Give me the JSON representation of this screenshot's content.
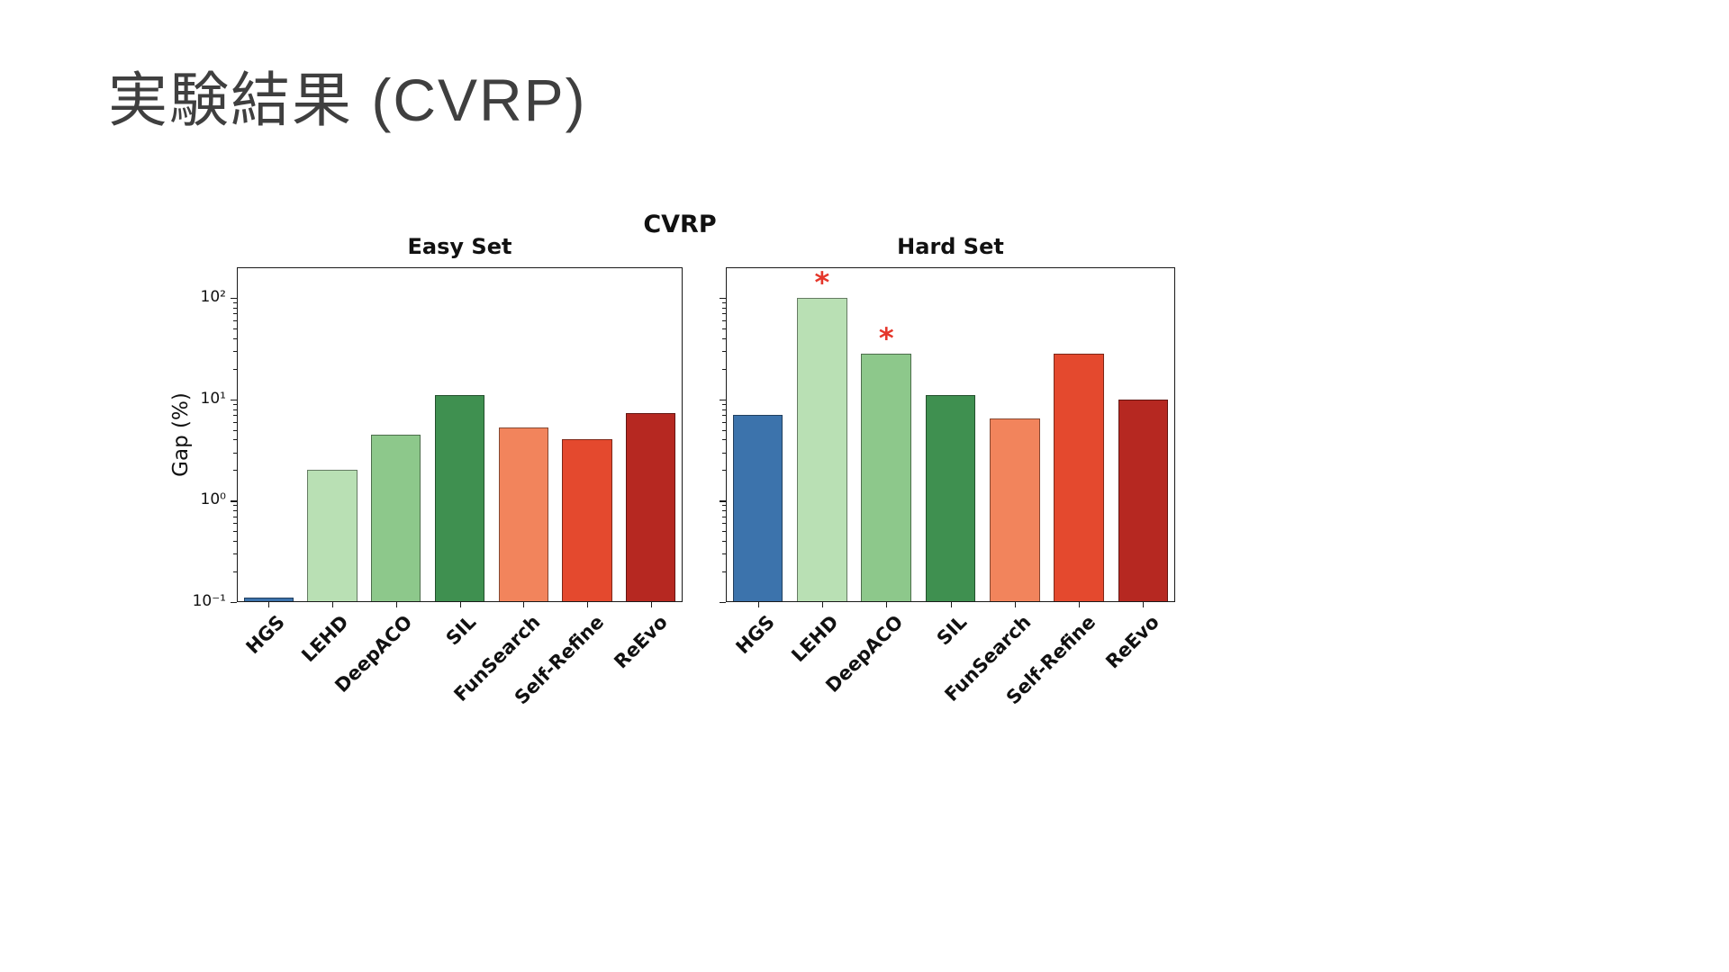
{
  "slide": {
    "title": "実験結果 (CVRP)"
  },
  "chart_data": {
    "type": "bar",
    "suptitle": "CVRP",
    "ylabel": "Gap (%)",
    "yscale": "log",
    "ylim": [
      0.1,
      200
    ],
    "yticks": [
      0.1,
      1,
      10,
      100
    ],
    "ytick_labels": [
      "10⁻¹",
      "10⁰",
      "10¹",
      "10²"
    ],
    "categories": [
      "HGS",
      "LEHD",
      "DeepACO",
      "SIL",
      "FunSearch",
      "Self-Refine",
      "ReEvo"
    ],
    "bar_colors": [
      "#3c73ac",
      "#b9e0b4",
      "#8dc88b",
      "#3f9050",
      "#f2845c",
      "#e4492e",
      "#b62821"
    ],
    "annotation_color": "#e5372b",
    "grid": false,
    "legend": "none",
    "subplots": [
      {
        "title": "Easy Set",
        "values": [
          0.11,
          2.0,
          4.5,
          11,
          5.3,
          4.0,
          7.3
        ],
        "starred": []
      },
      {
        "title": "Hard Set",
        "values": [
          7.0,
          100,
          28,
          11,
          6.5,
          28,
          10
        ],
        "starred": [
          1,
          2
        ]
      }
    ]
  }
}
